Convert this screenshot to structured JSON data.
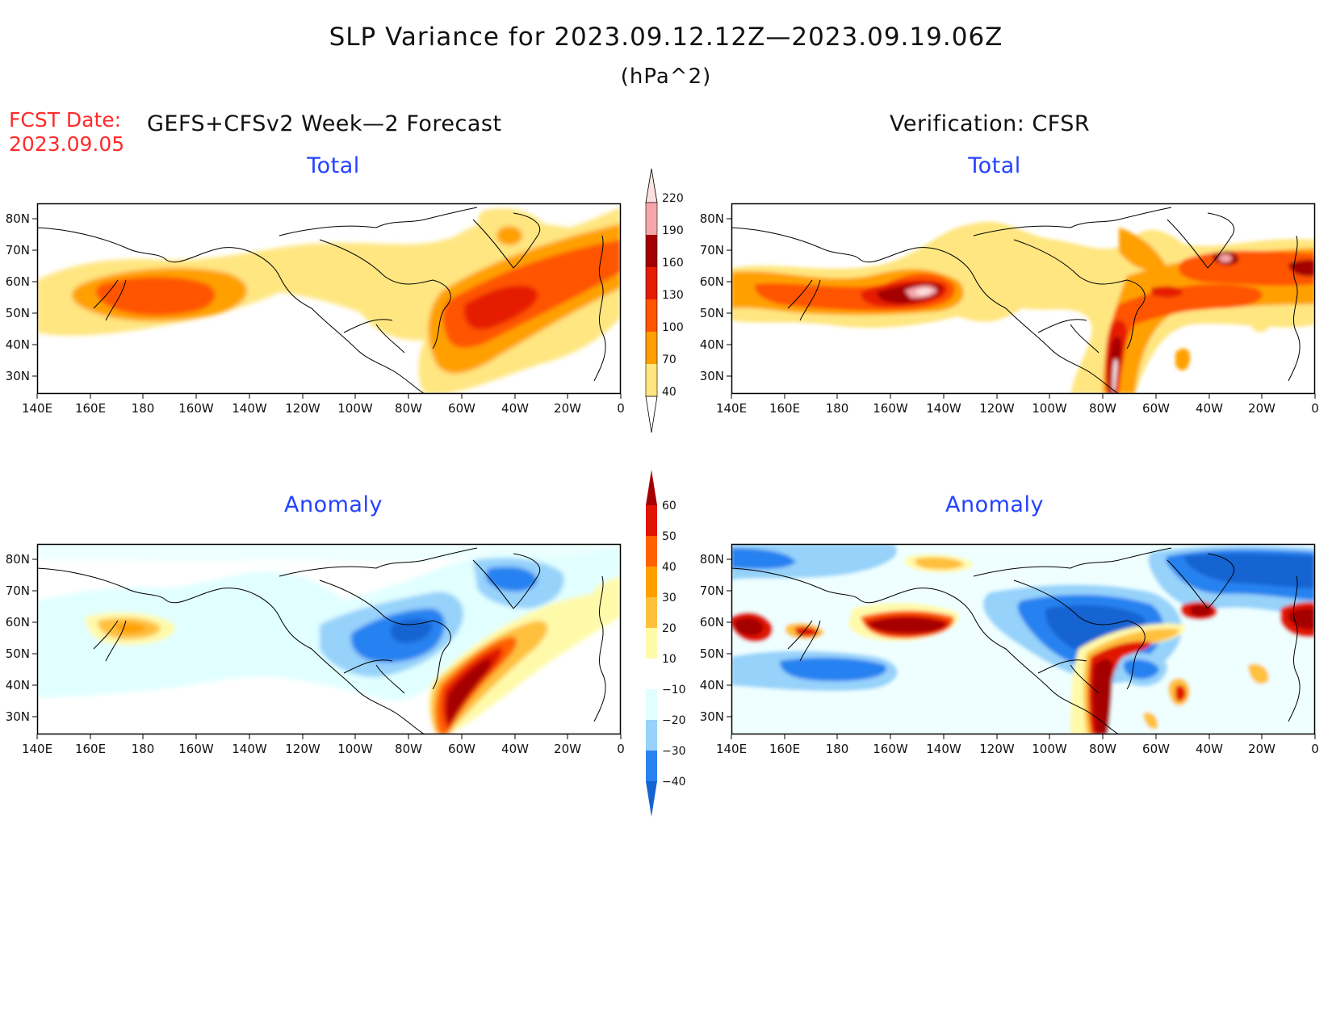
{
  "title": "SLP Variance for 2023.09.12.12Z—2023.09.19.06Z",
  "units": "(hPa^2)",
  "fcst_label": "FCST Date:",
  "fcst_date": "2023.09.05",
  "left_header": "GEFS+CFSv2 Week—2 Forecast",
  "right_header": "Verification: CFSR",
  "panel_titles": {
    "total": "Total",
    "anomaly": "Anomaly"
  },
  "lat_labels": [
    "80N",
    "70N",
    "60N",
    "50N",
    "40N",
    "30N"
  ],
  "lon_labels": [
    "140E",
    "160E",
    "180",
    "160W",
    "140W",
    "120W",
    "100W",
    "80W",
    "60W",
    "40W",
    "20W",
    "0"
  ],
  "total_colorbar": {
    "labels": [
      "40",
      "70",
      "100",
      "130",
      "160",
      "190",
      "220"
    ],
    "colors": [
      "#ffe680",
      "#ffa000",
      "#ff5500",
      "#e61c00",
      "#a50000",
      "#f4a6a8",
      "#fde0e0"
    ]
  },
  "anomaly_colorbar": {
    "labels": [
      "−40",
      "−30",
      "−20",
      "−10",
      "10",
      "20",
      "30",
      "40",
      "50",
      "60"
    ],
    "colors": [
      "#1464d2",
      "#2882f0",
      "#96d2fa",
      "#e1ffff",
      "#ffffff",
      "#fffaaa",
      "#ffc03c",
      "#ffa000",
      "#ff6000",
      "#e11400",
      "#a50000"
    ]
  }
}
